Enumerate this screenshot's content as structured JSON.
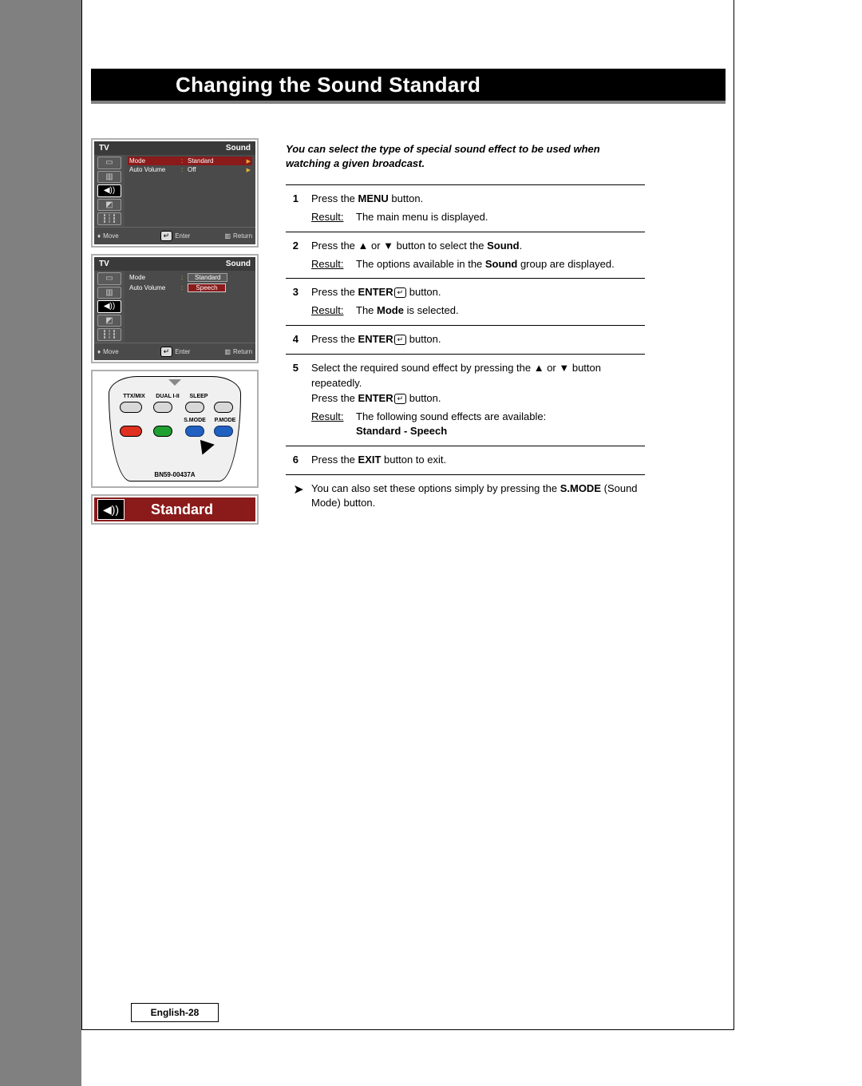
{
  "title": "Changing the Sound Standard",
  "intro": "You can select the type of special sound effect to be used when watching a given broadcast.",
  "steps": [
    {
      "num": "1",
      "lines": [
        "Press the <b>MENU</b> button."
      ],
      "result": "The main menu is displayed."
    },
    {
      "num": "2",
      "lines": [
        "Press the ▲ or ▼ button to select the <b>Sound</b>."
      ],
      "result": "The options available in the <b>Sound</b> group are displayed."
    },
    {
      "num": "3",
      "lines": [
        "Press the <b>ENTER</b><span class=\"enter-glyph\">↵</span> button."
      ],
      "result": "The <b>Mode</b> is selected."
    },
    {
      "num": "4",
      "lines": [
        "Press the <b>ENTER</b><span class=\"enter-glyph\">↵</span> button."
      ],
      "result": null
    },
    {
      "num": "5",
      "lines": [
        "Select the required sound effect by pressing the ▲ or ▼ button repeatedly.",
        "Press the <b>ENTER</b><span class=\"enter-glyph\">↵</span> button."
      ],
      "result": "The following sound effects are available:<br><b>Standard - Speech</b>"
    },
    {
      "num": "6",
      "lines": [
        "Press the <b>EXIT</b> button to exit."
      ],
      "result": null
    }
  ],
  "note": "You can also set these options simply by pressing the <b>S.MODE</b> (Sound Mode) button.",
  "result_label": "Result:",
  "tv_menu1": {
    "header_left": "TV",
    "header_right": "Sound",
    "rows": [
      {
        "label": "Mode",
        "value": "Standard",
        "hl": true,
        "arrow": true
      },
      {
        "label": "Auto Volume",
        "value": "Off",
        "hl": false,
        "arrow": true
      }
    ],
    "footer": {
      "move": "Move",
      "enter": "Enter",
      "ret": "Return"
    }
  },
  "tv_menu2": {
    "header_left": "TV",
    "header_right": "Sound",
    "rows": [
      {
        "label": "Mode",
        "value_box": "Standard",
        "box_alt": true
      },
      {
        "label": "Auto Volume",
        "value_box": "Speech",
        "box_alt": false
      }
    ],
    "footer": {
      "move": "Move",
      "enter": "Enter",
      "ret": "Return"
    }
  },
  "remote_labels": {
    "ttx": "TTX/MIX",
    "dual": "DUAL I-II",
    "sleep": "SLEEP",
    "smode": "S.MODE",
    "pmode": "P.MODE",
    "model": "BN59-00437A"
  },
  "standard_label": "Standard",
  "page_number": "English-28",
  "colors": {
    "title_bg": "#000000",
    "title_stripe": "#808080",
    "menu_dark": "#4a4a4a",
    "highlight": "#8b1a1a",
    "accent": "#e8b030"
  }
}
